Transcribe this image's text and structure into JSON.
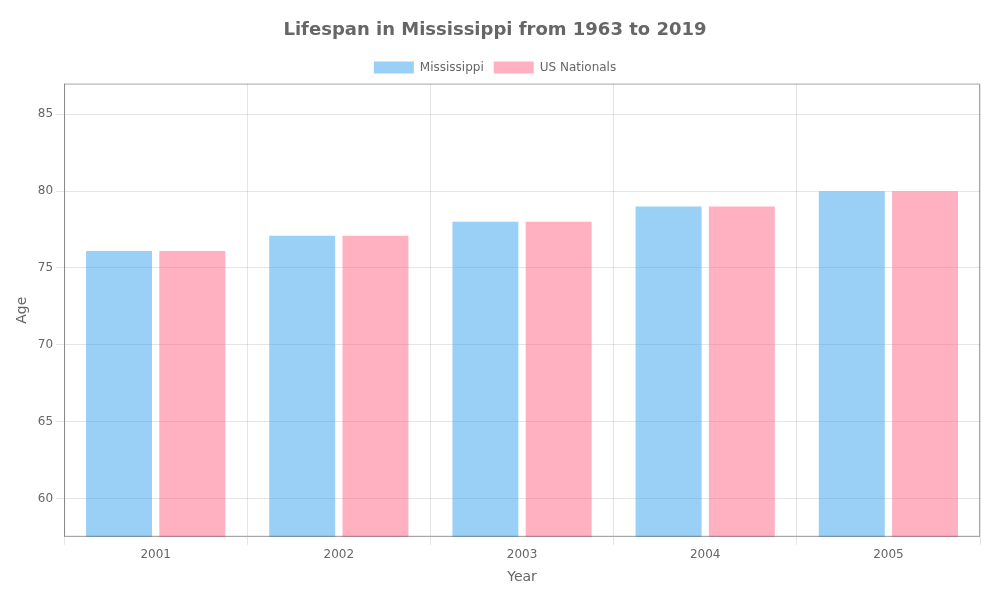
{
  "chart_data": {
    "type": "bar",
    "title": "Lifespan in Mississippi from 1963 to 2019",
    "xlabel": "Year",
    "ylabel": "Age",
    "categories": [
      "2001",
      "2002",
      "2003",
      "2004",
      "2005"
    ],
    "series": [
      {
        "name": "Mississippi",
        "values": [
          76.1,
          77.1,
          78.0,
          79.0,
          80.0
        ]
      },
      {
        "name": "US Nationals",
        "values": [
          76.1,
          77.1,
          78.0,
          79.0,
          80.0
        ]
      }
    ],
    "ylim": [
      57.5,
      87
    ],
    "yticks": [
      60,
      65,
      70,
      75,
      80,
      85
    ],
    "grid": true,
    "legend": "top"
  }
}
